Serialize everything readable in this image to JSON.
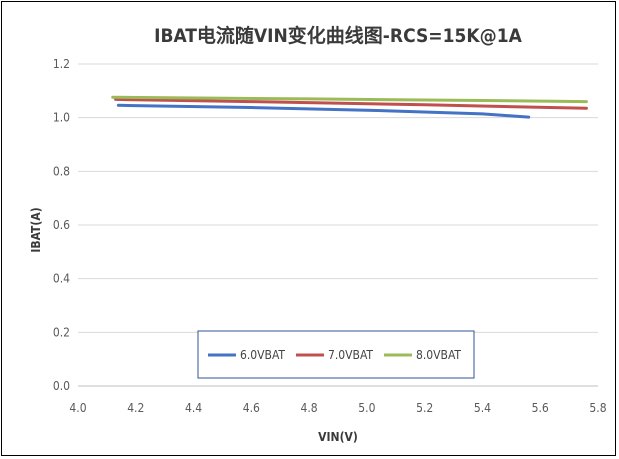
{
  "chart_data": {
    "type": "line",
    "title": "IBAT电流随VIN变化曲线图-RCS=15K@1A",
    "xlabel": "VIN(V)",
    "ylabel": "IBAT(A)",
    "xlim": [
      4.0,
      5.8
    ],
    "ylim": [
      0.0,
      1.2
    ],
    "xticks": [
      "4.0",
      "4.2",
      "4.4",
      "4.6",
      "4.8",
      "5.0",
      "5.2",
      "5.4",
      "5.6",
      "5.8"
    ],
    "yticks": [
      "0.0",
      "0.2",
      "0.4",
      "0.6",
      "0.8",
      "1.0",
      "1.2"
    ],
    "grid": "horizontal",
    "legend_position": "bottom-center",
    "series": [
      {
        "name": "6.0VBAT",
        "color": "#4472C4",
        "x": [
          4.14,
          4.6,
          5.0,
          5.4,
          5.56
        ],
        "y": [
          1.046,
          1.038,
          1.028,
          1.014,
          1.002
        ]
      },
      {
        "name": "7.0VBAT",
        "color": "#C0504D",
        "x": [
          4.13,
          4.6,
          5.2,
          5.76
        ],
        "y": [
          1.068,
          1.06,
          1.048,
          1.035
        ]
      },
      {
        "name": "8.0VBAT",
        "color": "#9BBB59",
        "x": [
          4.12,
          4.8,
          5.4,
          5.76
        ],
        "y": [
          1.076,
          1.07,
          1.064,
          1.06
        ]
      }
    ]
  }
}
